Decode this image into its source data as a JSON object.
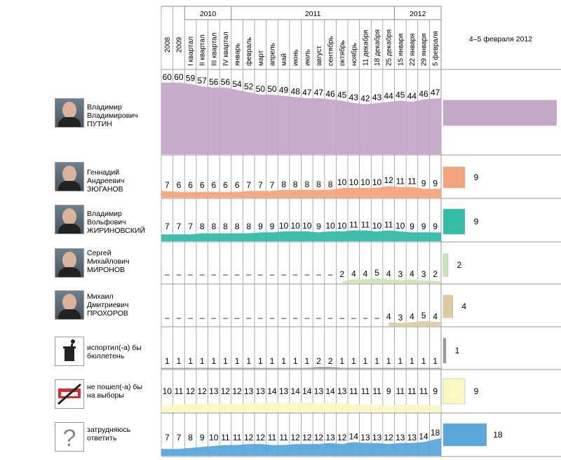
{
  "header": {
    "years": [
      "2010",
      "2011",
      "2012"
    ],
    "periods": [
      "2008",
      "2009",
      "I квартал",
      "II квартал",
      "III квартал",
      "IV квартал",
      "январь",
      "февраль",
      "март",
      "апрель",
      "май",
      "июнь",
      "июль",
      "август",
      "сентябрь",
      "октябрь",
      "ноябрь",
      "11 декабря",
      "18 декабря",
      "25 декабря",
      "15 января",
      "22 января",
      "29 января",
      "5 февраля"
    ],
    "final_label": "4–5 февраля 2012"
  },
  "colors": {
    "putin": "#c4a8c8",
    "zyuganov": "#f5a57d",
    "zhirinovsky": "#33bca6",
    "mironov": "#c8e6b4",
    "prokhorov": "#e0cba0",
    "spoil": "#9a9a9a",
    "not_vote": "#fbf8c4",
    "undecided": "#5aa7dc"
  },
  "candidates": [
    {
      "key": "putin",
      "name_lines": [
        "Владимир",
        "Владимирович",
        "ПУТИН"
      ]
    },
    {
      "key": "zyuganov",
      "name_lines": [
        "Геннадий",
        "Андреевич",
        "ЗЮГАНОВ"
      ]
    },
    {
      "key": "zhirinovsky",
      "name_lines": [
        "Владимир",
        "Вольфович",
        "ЖИРИНОВСКИЙ"
      ]
    },
    {
      "key": "mironov",
      "name_lines": [
        "Сергей",
        "Михайлович",
        "МИРОНОВ"
      ]
    },
    {
      "key": "prokhorov",
      "name_lines": [
        "Михаил",
        "Дмитриевич",
        "ПРОХОРОВ"
      ]
    },
    {
      "key": "spoil",
      "name_lines": [
        "испортил(-а) бы",
        "бюллетень"
      ]
    },
    {
      "key": "not_vote",
      "name_lines": [
        "не пошел(-а) бы",
        "на выборы"
      ]
    },
    {
      "key": "undecided",
      "name_lines": [
        "затрудняюсь",
        "ответить"
      ]
    }
  ],
  "chart_data": {
    "type": "area",
    "x": [
      "2008",
      "2009",
      "I квартал 2010",
      "II квартал 2010",
      "III квартал 2010",
      "IV квартал 2010",
      "январь 2011",
      "февраль 2011",
      "март 2011",
      "апрель 2011",
      "май 2011",
      "июнь 2011",
      "июль 2011",
      "август 2011",
      "сентябрь 2011",
      "октябрь 2011",
      "ноябрь 2011",
      "11 декабря 2011",
      "18 декабря 2011",
      "25 декабря 2011",
      "15 января 2012",
      "22 января 2012",
      "29 января 2012",
      "5 февраля 2012"
    ],
    "series": [
      {
        "name": "Владимир Владимирович ПУТИН",
        "values": [
          60,
          60,
          59,
          57,
          56,
          56,
          54,
          52,
          50,
          50,
          49,
          48,
          47,
          47,
          46,
          45,
          43,
          42,
          43,
          44,
          45,
          44,
          46,
          47
        ],
        "final": 47
      },
      {
        "name": "Геннадий Андреевич ЗЮГАНОВ",
        "values": [
          7,
          6,
          6,
          6,
          6,
          6,
          6,
          7,
          7,
          7,
          8,
          8,
          8,
          8,
          8,
          10,
          10,
          10,
          10,
          12,
          11,
          11,
          9,
          9
        ],
        "final": 9
      },
      {
        "name": "Владимир Вольфович ЖИРИНОВСКИЙ",
        "values": [
          7,
          7,
          7,
          8,
          8,
          8,
          8,
          8,
          9,
          9,
          10,
          10,
          10,
          9,
          10,
          10,
          11,
          11,
          10,
          11,
          10,
          9,
          9,
          9
        ],
        "final": 9
      },
      {
        "name": "Сергей Михайлович МИРОНОВ",
        "values": [
          "–",
          "–",
          "–",
          "–",
          "–",
          "–",
          "–",
          "–",
          "–",
          "–",
          "–",
          "–",
          "–",
          "–",
          "–",
          2,
          4,
          4,
          5,
          4,
          3,
          4,
          3,
          2
        ],
        "final": 2
      },
      {
        "name": "Михаил Дмитриевич ПРОХОРОВ",
        "values": [
          "–",
          "–",
          "–",
          "–",
          "–",
          "–",
          "–",
          "–",
          "–",
          "–",
          "–",
          "–",
          "–",
          "–",
          "–",
          "–",
          "–",
          "–",
          "–",
          4,
          3,
          4,
          5,
          4
        ],
        "final": 4
      },
      {
        "name": "испортил(-а) бы бюллетень",
        "values": [
          1,
          1,
          1,
          1,
          1,
          1,
          1,
          1,
          1,
          1,
          1,
          1,
          1,
          2,
          2,
          1,
          1,
          1,
          1,
          1,
          1,
          1,
          1,
          1
        ],
        "final": 1
      },
      {
        "name": "не пошел(-а) бы на выборы",
        "values": [
          10,
          11,
          12,
          12,
          13,
          12,
          12,
          13,
          13,
          14,
          13,
          14,
          14,
          13,
          14,
          13,
          11,
          11,
          11,
          9,
          11,
          11,
          11,
          9
        ],
        "final": 9
      },
      {
        "name": "затрудняюсь ответить",
        "values": [
          7,
          7,
          8,
          9,
          10,
          11,
          11,
          12,
          12,
          11,
          11,
          12,
          12,
          12,
          13,
          12,
          14,
          13,
          13,
          12,
          13,
          13,
          14,
          18
        ],
        "final": 18
      }
    ]
  }
}
